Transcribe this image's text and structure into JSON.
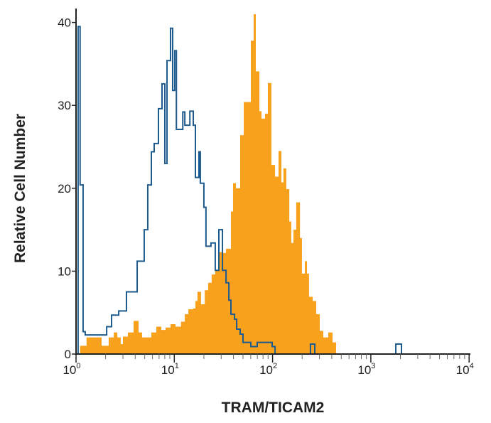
{
  "chart_data": {
    "type": "histogram",
    "title": "",
    "xlabel": "TRAM/TICAM2",
    "ylabel": "Relative Cell Number",
    "xscale": "log",
    "xlim": [
      1,
      10000
    ],
    "ylim": [
      0,
      42
    ],
    "x_ticks": [
      {
        "base": "10",
        "exp": "0",
        "value": 1
      },
      {
        "base": "10",
        "exp": "1",
        "value": 10
      },
      {
        "base": "10",
        "exp": "2",
        "value": 100
      },
      {
        "base": "10",
        "exp": "3",
        "value": 1000
      },
      {
        "base": "10",
        "exp": "4",
        "value": 10000
      }
    ],
    "y_ticks": [
      "0",
      "10",
      "20",
      "30",
      "40"
    ],
    "grid": false,
    "legend": "none",
    "series": [
      {
        "style": "filled",
        "color": "#F7A11C",
        "steps": [
          [
            1.1,
            1
          ],
          [
            1.28,
            2
          ],
          [
            1.82,
            1
          ],
          [
            2.15,
            2
          ],
          [
            2.42,
            2.6
          ],
          [
            2.63,
            2
          ],
          [
            2.85,
            1.2
          ],
          [
            3.0,
            2.1
          ],
          [
            3.37,
            2.6
          ],
          [
            3.85,
            4
          ],
          [
            4.33,
            2.6
          ],
          [
            4.7,
            2
          ],
          [
            5.84,
            2.6
          ],
          [
            6.56,
            3.3
          ],
          [
            7.38,
            2.9
          ],
          [
            8.15,
            3.2
          ],
          [
            9.16,
            3.6
          ],
          [
            10.3,
            3.3
          ],
          [
            11.7,
            3.9
          ],
          [
            12.8,
            4.8
          ],
          [
            13.9,
            5.4
          ],
          [
            15.6,
            5.5
          ],
          [
            16.4,
            6.4
          ],
          [
            17.2,
            7.5
          ],
          [
            18.7,
            6
          ],
          [
            20.4,
            7.7
          ],
          [
            22.1,
            8.6
          ],
          [
            24.0,
            9.6
          ],
          [
            26.1,
            10.1
          ],
          [
            27.9,
            12.3
          ],
          [
            30.9,
            12.2
          ],
          [
            33.6,
            12.7
          ],
          [
            37.7,
            17.2
          ],
          [
            39.6,
            20.6
          ],
          [
            42.4,
            20
          ],
          [
            46.8,
            26.4
          ],
          [
            50.9,
            30.4
          ],
          [
            60.1,
            37.8
          ],
          [
            64.2,
            41
          ],
          [
            67.5,
            34.1
          ],
          [
            73.4,
            29.3
          ],
          [
            77.1,
            28.4
          ],
          [
            83.8,
            29
          ],
          [
            89.6,
            32.7
          ],
          [
            97.3,
            22.8
          ],
          [
            106,
            21.4
          ],
          [
            115,
            24.5
          ],
          [
            123,
            20.7
          ],
          [
            129,
            22.4
          ],
          [
            138,
            19.9
          ],
          [
            148,
            16
          ],
          [
            155,
            13.4
          ],
          [
            163,
            15
          ],
          [
            174,
            18.3
          ],
          [
            190,
            14
          ],
          [
            199,
            9.7
          ],
          [
            213,
            11.2
          ],
          [
            224,
            9.7
          ],
          [
            235,
            6.9
          ],
          [
            256,
            6.4
          ],
          [
            278,
            4.8
          ],
          [
            302,
            2.8
          ],
          [
            328,
            2.0
          ],
          [
            369,
            2.6
          ],
          [
            408,
            1.4
          ],
          [
            443,
            0
          ]
        ]
      },
      {
        "style": "outline",
        "color": "#1D5A8E",
        "steps": [
          [
            1.05,
            39.5
          ],
          [
            1.1,
            20.4
          ],
          [
            1.18,
            2.7
          ],
          [
            1.24,
            2.3
          ],
          [
            2.05,
            3.3
          ],
          [
            2.3,
            4.7
          ],
          [
            2.72,
            5.2
          ],
          [
            3.26,
            7.5
          ],
          [
            4.19,
            11.2
          ],
          [
            4.94,
            15
          ],
          [
            5.37,
            20.4
          ],
          [
            5.84,
            24.4
          ],
          [
            6.24,
            25.4
          ],
          [
            6.9,
            29.6
          ],
          [
            7.5,
            32.6
          ],
          [
            8.01,
            23
          ],
          [
            8.43,
            35.4
          ],
          [
            9.16,
            39.3
          ],
          [
            9.62,
            31.8
          ],
          [
            10.1,
            36.6
          ],
          [
            10.5,
            27.1
          ],
          [
            12.2,
            29.2
          ],
          [
            12.8,
            27.6
          ],
          [
            14.4,
            29.3
          ],
          [
            15.6,
            27.6
          ],
          [
            16.4,
            21.3
          ],
          [
            17.8,
            24.4
          ],
          [
            18.4,
            20.6
          ],
          [
            20.0,
            17.7
          ],
          [
            21.0,
            13
          ],
          [
            23.6,
            13.4
          ],
          [
            26.1,
            10.1
          ],
          [
            28.4,
            15
          ],
          [
            30.9,
            10.1
          ],
          [
            33.6,
            8.6
          ],
          [
            35.9,
            6.5
          ],
          [
            37.7,
            4.8
          ],
          [
            41.0,
            4.2
          ],
          [
            43.1,
            3
          ],
          [
            46.8,
            2.4
          ],
          [
            50.0,
            1.4
          ],
          [
            60.1,
            0.9
          ],
          [
            69.8,
            1.4
          ],
          [
            99,
            0.9
          ],
          [
            106,
            0
          ],
          [
            243,
            1.2
          ],
          [
            269,
            0
          ],
          [
            1795,
            1.2
          ],
          [
            2050,
            0
          ],
          [
            10000,
            0
          ]
        ]
      }
    ]
  }
}
